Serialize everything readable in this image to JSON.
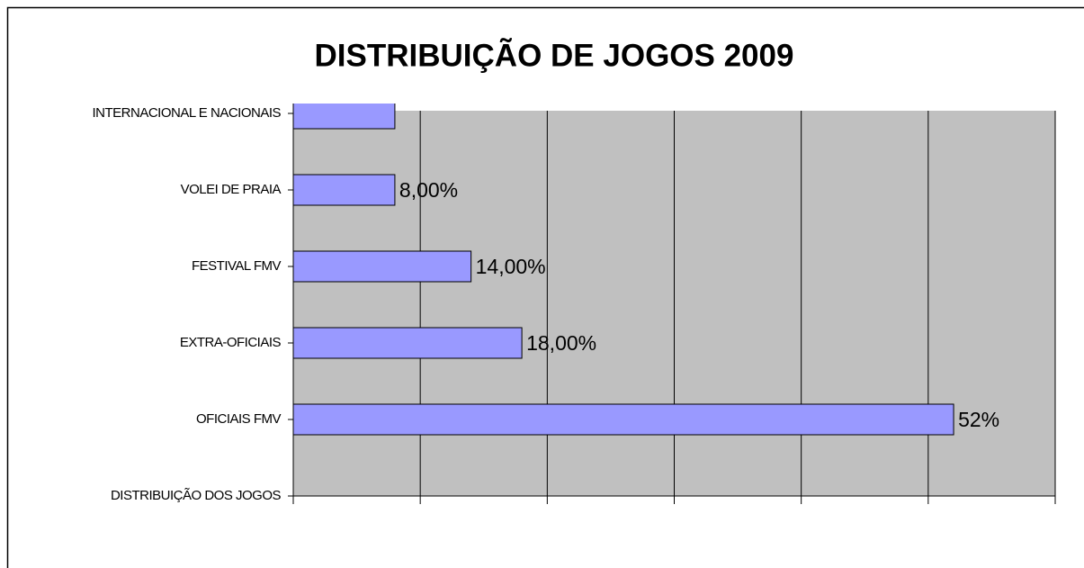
{
  "chart_data": {
    "type": "bar",
    "orientation": "horizontal",
    "title": "DISTRIBUIÇÃO DE JOGOS 2009",
    "categories": [
      "INTERNACIONAL E NACIONAIS",
      "VOLEI DE PRAIA",
      "FESTIVAL FMV",
      "EXTRA-OFICIAIS",
      "OFICIAIS FMV",
      "DISTRIBUIÇÃO DOS JOGOS"
    ],
    "values": [
      8,
      8,
      14,
      18,
      52,
      null
    ],
    "value_labels": [
      null,
      "8,00%",
      "14,00%",
      "18,00%",
      "52%",
      null
    ],
    "color": "#9999ff",
    "xlim": [
      0,
      60
    ],
    "xticks": [
      0,
      10,
      20,
      30,
      40,
      50,
      60
    ],
    "grid": true
  }
}
